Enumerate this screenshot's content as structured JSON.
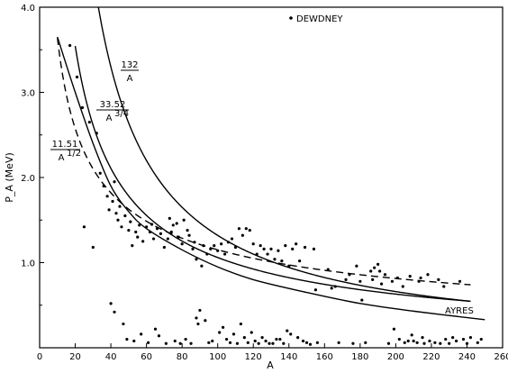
{
  "chart_data": {
    "type": "scatter",
    "xlabel": "A",
    "ylabel": "P_A (MeV)",
    "xlim": [
      0,
      260
    ],
    "ylim": [
      0,
      4.0
    ],
    "x_ticks": [
      "0",
      "20",
      "40",
      "60",
      "80",
      "100",
      "120",
      "140",
      "160",
      "180",
      "200",
      "220",
      "240",
      "260"
    ],
    "y_ticks": [
      "1.0",
      "2.0",
      "3.0",
      "4.0"
    ],
    "grid": false,
    "legend_marker_label": "DEWDNEY",
    "curves": [
      {
        "label_num": "132",
        "label_den": "A",
        "coef": 132,
        "exponent": 1.0,
        "style": "solid",
        "x_start": 19,
        "x_end": 242
      },
      {
        "label_num": "33.52",
        "label_den": "A",
        "label_den_sup": "3/4",
        "coef": 33.52,
        "exponent": 0.75,
        "style": "solid",
        "x_start": 20,
        "x_end": 242
      },
      {
        "label_num": "11.51",
        "label_den": "A",
        "label_den_sup": "1/2",
        "coef": 11.51,
        "exponent": 0.5,
        "style": "dashed",
        "x_start": 10,
        "x_end": 242
      },
      {
        "label": "AYRES",
        "style": "solid",
        "x": [
          10,
          20,
          30,
          40,
          50,
          60,
          80,
          100,
          120,
          150,
          180,
          210,
          250
        ],
        "y": [
          3.65,
          3.0,
          2.4,
          1.9,
          1.6,
          1.4,
          1.15,
          0.95,
          0.8,
          0.65,
          0.52,
          0.43,
          0.33
        ]
      }
    ],
    "series": [
      {
        "name": "DEWDNEY",
        "points": [
          [
            17,
            3.55
          ],
          [
            21,
            3.18
          ],
          [
            24,
            2.82
          ],
          [
            25,
            1.42
          ],
          [
            28,
            2.65
          ],
          [
            30,
            1.18
          ],
          [
            32,
            2.52
          ],
          [
            34,
            2.05
          ],
          [
            36,
            1.9
          ],
          [
            38,
            1.78
          ],
          [
            39,
            1.62
          ],
          [
            40,
            0.52
          ],
          [
            41,
            1.72
          ],
          [
            42,
            1.95
          ],
          [
            42,
            0.42
          ],
          [
            43,
            1.58
          ],
          [
            44,
            1.5
          ],
          [
            45,
            1.66
          ],
          [
            46,
            1.42
          ],
          [
            47,
            0.28
          ],
          [
            48,
            1.55
          ],
          [
            49,
            0.1
          ],
          [
            50,
            1.38
          ],
          [
            51,
            1.48
          ],
          [
            52,
            1.2
          ],
          [
            53,
            0.08
          ],
          [
            54,
            1.36
          ],
          [
            55,
            1.3
          ],
          [
            56,
            1.44
          ],
          [
            57,
            0.16
          ],
          [
            58,
            1.25
          ],
          [
            60,
            1.42
          ],
          [
            61,
            0.06
          ],
          [
            62,
            1.36
          ],
          [
            63,
            1.45
          ],
          [
            64,
            1.28
          ],
          [
            65,
            0.22
          ],
          [
            66,
            1.4
          ],
          [
            67,
            0.14
          ],
          [
            68,
            1.34
          ],
          [
            70,
            1.18
          ],
          [
            71,
            0.05
          ],
          [
            72,
            1.28
          ],
          [
            73,
            1.52
          ],
          [
            74,
            1.36
          ],
          [
            75,
            1.44
          ],
          [
            76,
            0.08
          ],
          [
            77,
            1.46
          ],
          [
            78,
            1.3
          ],
          [
            79,
            0.05
          ],
          [
            80,
            1.22
          ],
          [
            81,
            1.5
          ],
          [
            82,
            0.1
          ],
          [
            83,
            1.38
          ],
          [
            84,
            1.32
          ],
          [
            85,
            0.05
          ],
          [
            86,
            1.16
          ],
          [
            87,
            1.24
          ],
          [
            88,
            0.35
          ],
          [
            88,
            1.04
          ],
          [
            89,
            0.28
          ],
          [
            90,
            0.44
          ],
          [
            91,
            0.96
          ],
          [
            92,
            1.2
          ],
          [
            93,
            0.32
          ],
          [
            94,
            1.1
          ],
          [
            95,
            0.06
          ],
          [
            96,
            1.16
          ],
          [
            97,
            0.08
          ],
          [
            98,
            1.2
          ],
          [
            100,
            1.14
          ],
          [
            101,
            0.18
          ],
          [
            102,
            1.22
          ],
          [
            103,
            0.24
          ],
          [
            104,
            1.1
          ],
          [
            105,
            0.1
          ],
          [
            106,
            1.24
          ],
          [
            107,
            0.06
          ],
          [
            108,
            1.28
          ],
          [
            109,
            0.16
          ],
          [
            110,
            1.18
          ],
          [
            111,
            0.05
          ],
          [
            112,
            1.4
          ],
          [
            113,
            0.28
          ],
          [
            114,
            1.32
          ],
          [
            115,
            0.12
          ],
          [
            116,
            1.4
          ],
          [
            117,
            0.06
          ],
          [
            118,
            1.38
          ],
          [
            119,
            0.18
          ],
          [
            120,
            1.22
          ],
          [
            121,
            0.08
          ],
          [
            122,
            1.1
          ],
          [
            123,
            0.05
          ],
          [
            124,
            1.2
          ],
          [
            125,
            0.12
          ],
          [
            126,
            1.16
          ],
          [
            127,
            0.08
          ],
          [
            128,
            1.1
          ],
          [
            129,
            0.05
          ],
          [
            130,
            1.16
          ],
          [
            131,
            0.05
          ],
          [
            132,
            1.04
          ],
          [
            133,
            0.1
          ],
          [
            134,
            1.14
          ],
          [
            135,
            0.1
          ],
          [
            136,
            1.02
          ],
          [
            137,
            0.05
          ],
          [
            138,
            1.2
          ],
          [
            139,
            0.2
          ],
          [
            140,
            0.96
          ],
          [
            141,
            0.16
          ],
          [
            142,
            1.16
          ],
          [
            144,
            1.22
          ],
          [
            145,
            0.12
          ],
          [
            146,
            1.02
          ],
          [
            148,
            0.08
          ],
          [
            149,
            1.18
          ],
          [
            150,
            0.06
          ],
          [
            152,
            0.04
          ],
          [
            154,
            1.16
          ],
          [
            155,
            0.68
          ],
          [
            156,
            0.06
          ],
          [
            162,
            0.92
          ],
          [
            164,
            0.7
          ],
          [
            166,
            0.72
          ],
          [
            168,
            0.06
          ],
          [
            172,
            0.8
          ],
          [
            174,
            0.86
          ],
          [
            176,
            0.05
          ],
          [
            178,
            0.96
          ],
          [
            180,
            0.78
          ],
          [
            181,
            0.56
          ],
          [
            183,
            0.06
          ],
          [
            186,
            0.9
          ],
          [
            187,
            0.8
          ],
          [
            188,
            0.94
          ],
          [
            190,
            0.98
          ],
          [
            191,
            0.9
          ],
          [
            192,
            0.75
          ],
          [
            194,
            0.86
          ],
          [
            196,
            0.05
          ],
          [
            198,
            0.78
          ],
          [
            199,
            0.22
          ],
          [
            201,
            0.82
          ],
          [
            202,
            0.1
          ],
          [
            204,
            0.72
          ],
          [
            205,
            0.06
          ],
          [
            207,
            0.08
          ],
          [
            208,
            0.84
          ],
          [
            209,
            0.15
          ],
          [
            210,
            0.08
          ],
          [
            212,
            0.06
          ],
          [
            213,
            0.78
          ],
          [
            214,
            0.82
          ],
          [
            215,
            0.12
          ],
          [
            216,
            0.05
          ],
          [
            218,
            0.86
          ],
          [
            219,
            0.08
          ],
          [
            222,
            0.06
          ],
          [
            224,
            0.8
          ],
          [
            225,
            0.05
          ],
          [
            227,
            0.72
          ],
          [
            228,
            0.1
          ],
          [
            230,
            0.05
          ],
          [
            232,
            0.12
          ],
          [
            234,
            0.08
          ],
          [
            236,
            0.78
          ],
          [
            238,
            0.1
          ],
          [
            240,
            0.05
          ],
          [
            242,
            0.12
          ],
          [
            246,
            0.06
          ],
          [
            248,
            0.1
          ]
        ]
      }
    ]
  }
}
